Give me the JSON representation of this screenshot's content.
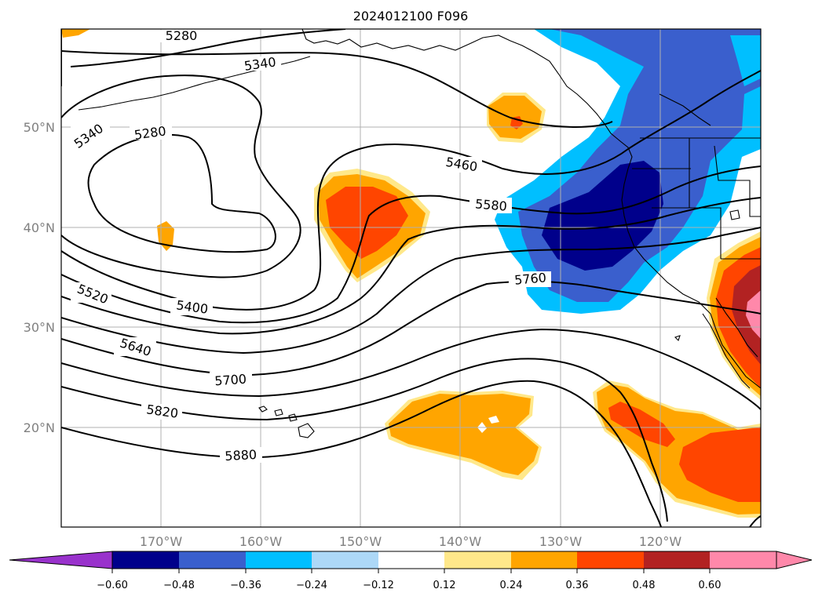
{
  "title": "2024012100 F096",
  "lat_labels": [
    "50°N",
    "40°N",
    "30°N",
    "20°N"
  ],
  "lon_labels": [
    "170°W",
    "160°W",
    "150°W",
    "140°W",
    "130°W",
    "120°W"
  ],
  "contours": {
    "labels": [
      "5280",
      "5340",
      "5340",
      "5280",
      "5460",
      "5580",
      "5760",
      "5520",
      "5400",
      "5640",
      "5700",
      "5820",
      "5880"
    ],
    "line_color": "#000000"
  },
  "colorbar": {
    "ticks": [
      "−0.60",
      "−0.48",
      "−0.36",
      "−0.24",
      "−0.12",
      "0.12",
      "0.24",
      "0.36",
      "0.48",
      "0.60"
    ],
    "colors": {
      "below_min": "#9932cc",
      "c1": "#00008b",
      "c2": "#3a5fcd",
      "c3": "#00bfff",
      "c4": "#add8f7",
      "c5": "#ffffff",
      "c6": "#ffe88a",
      "c7": "#ffa500",
      "c8": "#ff4500",
      "c9": "#b22222",
      "above_max": "#ff88aa"
    }
  }
}
